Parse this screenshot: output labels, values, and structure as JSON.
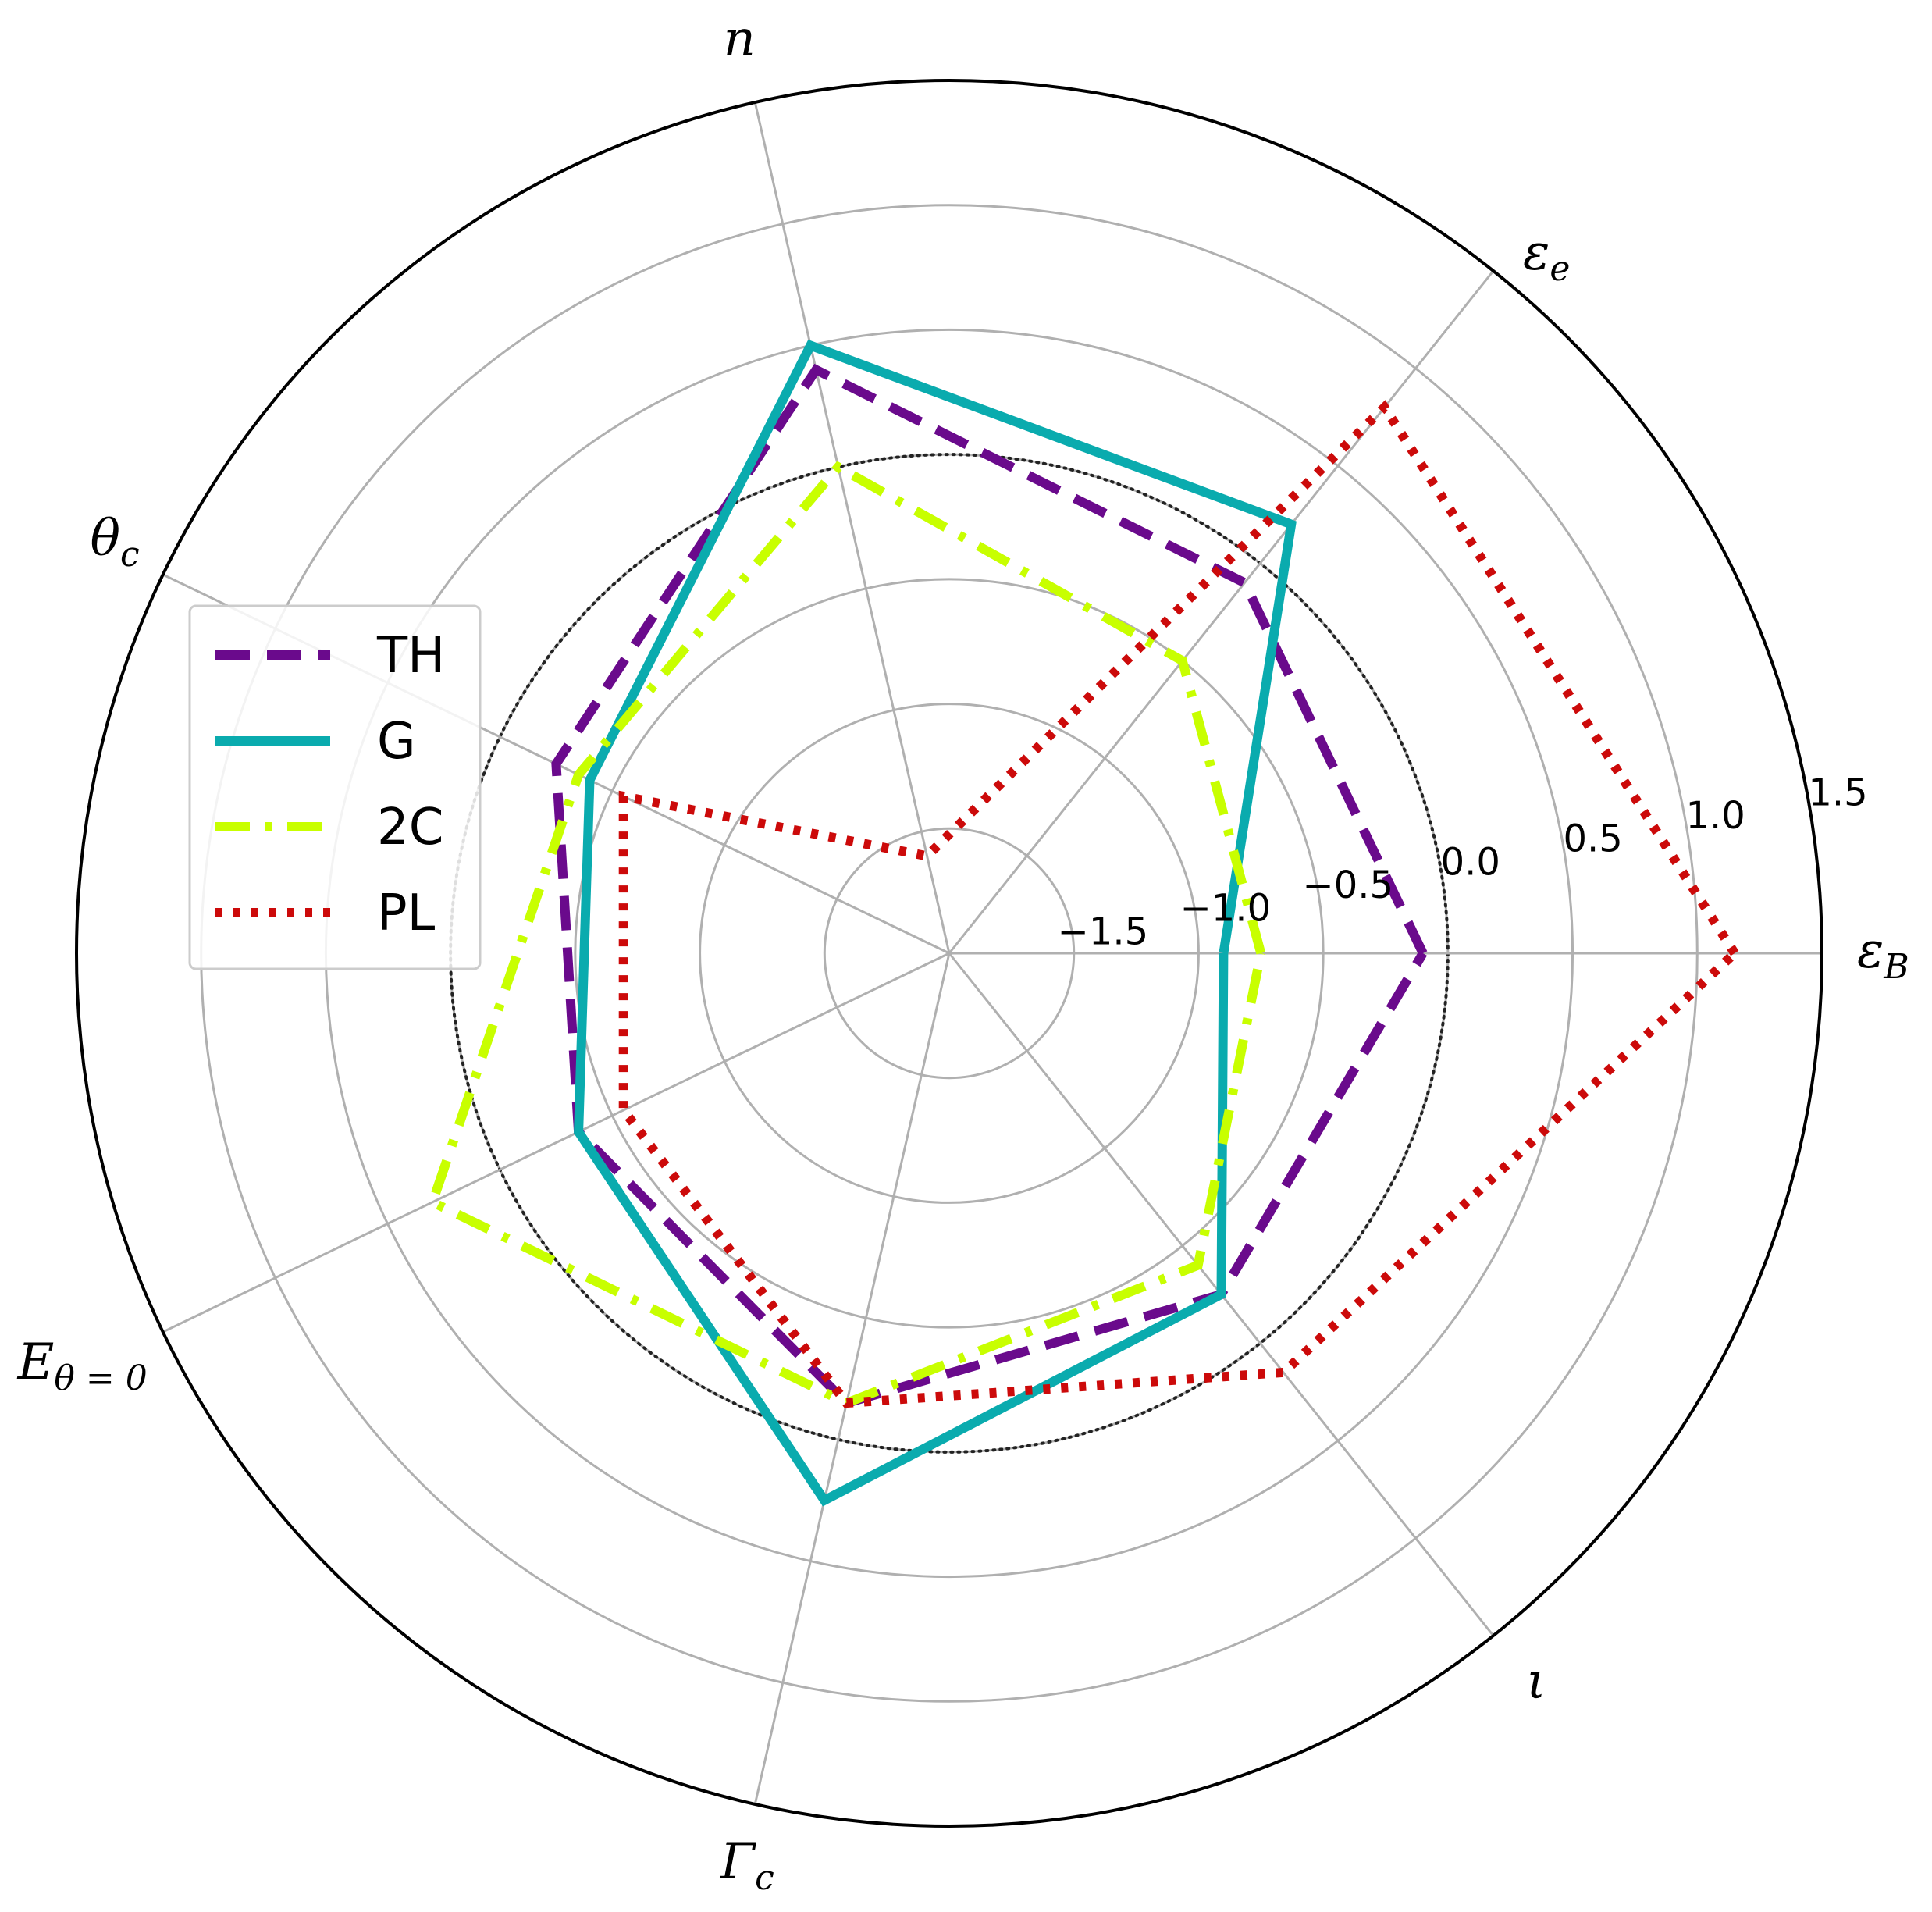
{
  "chart_data": {
    "type": "radar",
    "axes": [
      {
        "key": "eps_B",
        "main": "ε",
        "sub": "B"
      },
      {
        "key": "eps_e",
        "main": "ε",
        "sub": "e"
      },
      {
        "key": "n",
        "main": "n",
        "sub": ""
      },
      {
        "key": "theta_c",
        "main": "θ",
        "sub": "c"
      },
      {
        "key": "E_theta0",
        "main": "E",
        "sub": "θ = 0"
      },
      {
        "key": "Gamma_c",
        "main": "Γ",
        "sub": "c"
      },
      {
        "key": "iota",
        "main": "ι",
        "sub": ""
      }
    ],
    "radial_ticks": [
      -1.5,
      -1.0,
      -0.5,
      0.0,
      0.5,
      1.0,
      1.5
    ],
    "radial_tick_labels": [
      "−1.5",
      "−1.0",
      "−0.5",
      "0.0",
      "0.5",
      "1.0",
      "1.5"
    ],
    "rlim": [
      -2.0,
      1.5
    ],
    "reference_circle": 0.0,
    "grid": true,
    "legend_position": "upper-left",
    "series": [
      {
        "name": "TH",
        "style": "dashed",
        "color": "#6a0a8c",
        "values": [
          -0.1,
          -0.1,
          0.4,
          -0.25,
          -0.35,
          -0.15,
          -0.25
        ]
      },
      {
        "name": "G",
        "style": "solid",
        "color": "#0aabae",
        "values": [
          -0.9,
          0.2,
          0.5,
          -0.4,
          -0.35,
          0.25,
          -0.25
        ]
      },
      {
        "name": "2C",
        "style": "dashdot",
        "color": "#c8ff00",
        "values": [
          -0.75,
          -0.5,
          0.0,
          -0.35,
          0.3,
          -0.15,
          -0.4
        ]
      },
      {
        "name": "PL",
        "style": "dotted",
        "color": "#cc0a0a",
        "values": [
          1.15,
          0.8,
          -1.6,
          -0.55,
          -0.55,
          -0.15,
          0.15
        ]
      }
    ]
  }
}
